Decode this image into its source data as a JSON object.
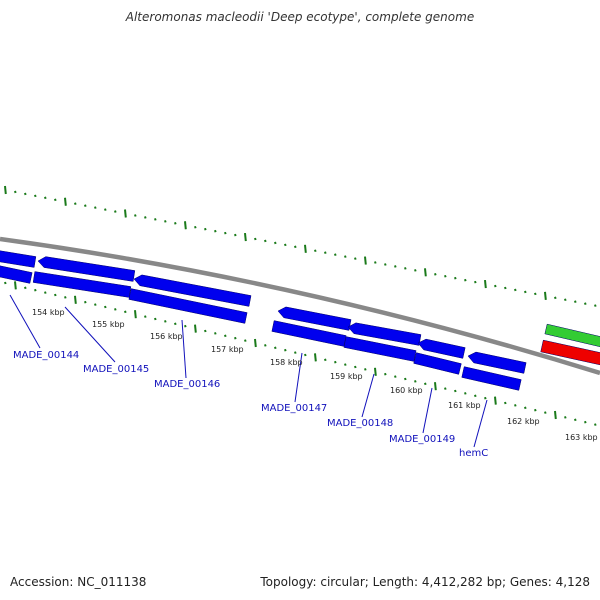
{
  "title": "Alteromonas macleodii 'Deep ecotype', complete genome",
  "accession": "Accession: NC_011138",
  "topology": "Topology: circular; Length: 4,412,282 bp; Genes: 4,128",
  "ticks": [
    "154 kbp",
    "155 kbp",
    "156 kbp",
    "157 kbp",
    "158 kbp",
    "159 kbp",
    "160 kbp",
    "161 kbp",
    "162 kbp",
    "163 kbp"
  ],
  "genes": [
    "MADE_00144",
    "MADE_00145",
    "MADE_00146",
    "MADE_00147",
    "MADE_00148",
    "MADE_00149",
    "hemC"
  ],
  "colors": {
    "cds": "#0000ee",
    "backbone": "#888888",
    "tick": "#1a7a1a",
    "gene_label": "#1111bb",
    "feature_green": "#33cc33",
    "feature_red": "#ee0000"
  }
}
